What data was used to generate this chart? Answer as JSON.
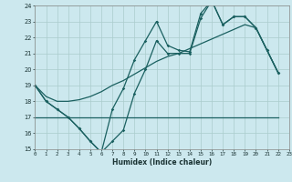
{
  "xlabel": "Humidex (Indice chaleur)",
  "bg_color": "#cce8ee",
  "grid_color": "#aacccc",
  "line_color": "#1a6060",
  "x_min": 0,
  "x_max": 23,
  "y_min": 15,
  "y_max": 24,
  "line1_y": [
    19.0,
    18.0,
    17.5,
    17.0,
    16.3,
    15.5,
    14.8,
    17.5,
    18.8,
    20.6,
    21.8,
    23.0,
    21.5,
    21.2,
    21.1,
    23.5,
    24.3,
    22.8,
    23.3,
    23.3,
    22.6,
    21.2,
    19.8
  ],
  "line2_y": [
    19.0,
    18.0,
    17.5,
    17.0,
    16.3,
    15.5,
    14.8,
    15.5,
    16.2,
    18.5,
    20.0,
    21.8,
    21.0,
    21.0,
    21.0,
    23.2,
    24.3,
    22.8,
    23.3,
    23.3,
    22.6,
    21.2,
    19.8
  ],
  "line3_y": [
    17.0,
    17.0,
    17.0,
    17.0,
    17.0,
    17.0,
    17.0,
    17.0,
    17.0,
    17.0,
    17.0,
    17.0,
    17.0,
    17.0,
    17.0,
    17.0,
    17.0,
    17.0,
    17.0,
    17.0,
    17.0,
    17.0,
    17.0
  ],
  "line4_y": [
    19.0,
    18.3,
    18.0,
    18.0,
    18.1,
    18.3,
    18.6,
    19.0,
    19.3,
    19.7,
    20.1,
    20.5,
    20.8,
    21.0,
    21.3,
    21.6,
    21.9,
    22.2,
    22.5,
    22.8,
    22.6,
    21.2,
    19.8
  ]
}
